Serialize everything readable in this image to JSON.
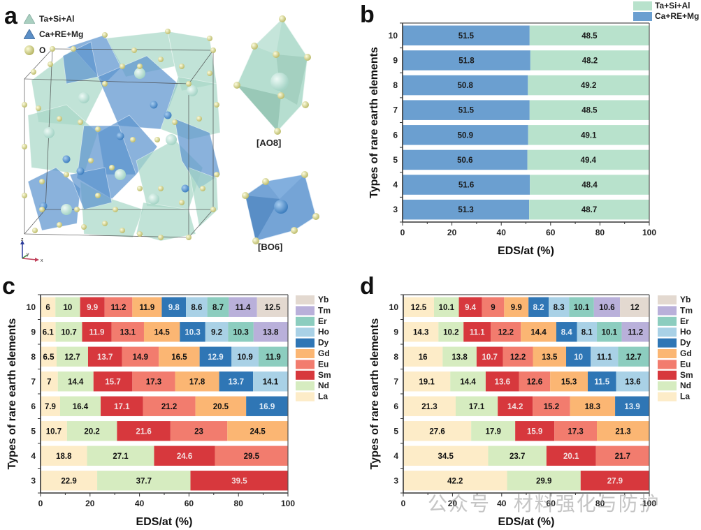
{
  "panels": {
    "a": {
      "letter": "a",
      "legend": [
        {
          "label": "Ta+Si+Al",
          "icon": "tetrahedron-icon",
          "color": "#a9cfc0"
        },
        {
          "label": "Ca+RE+Mg",
          "icon": "tetrahedron-icon",
          "color": "#5b8fc7"
        },
        {
          "label": "O",
          "icon": "sphere-icon",
          "color": "#e6e59a"
        }
      ],
      "structure_labels": {
        "ao8": "[AO8]",
        "bo6": "[BO6]"
      },
      "axes_labels": {
        "z": "z",
        "y": "y",
        "x": "x"
      }
    },
    "b": {
      "letter": "b"
    },
    "c": {
      "letter": "c"
    },
    "d": {
      "letter": "d"
    }
  },
  "watermark": "公众号 · 材料强化与防护",
  "chart_data": [
    {
      "id": "b",
      "type": "bar",
      "orientation": "horizontal-stacked",
      "title": "",
      "xlabel": "EDS/at (%)",
      "ylabel": "Types of rare earth elements",
      "xlim": [
        0,
        100
      ],
      "xticks": [
        "0",
        "20",
        "40",
        "60",
        "80",
        "100"
      ],
      "categories": [
        "10",
        "9",
        "8",
        "7",
        "6",
        "5",
        "4",
        "3"
      ],
      "legend_position": "top-right",
      "series": [
        {
          "name": "Ca+RE+Mg",
          "color": "#6b9fd0",
          "values": [
            51.5,
            51.8,
            50.8,
            51.5,
            50.9,
            50.6,
            51.6,
            51.3
          ]
        },
        {
          "name": "Ta+Si+Al",
          "color": "#b8e2cc",
          "values": [
            48.5,
            48.2,
            49.2,
            48.5,
            49.1,
            49.4,
            48.4,
            48.7
          ]
        }
      ],
      "legend": [
        {
          "name": "Ta+Si+Al",
          "color": "#b8e2cc"
        },
        {
          "name": "Ca+RE+Mg",
          "color": "#6b9fd0"
        }
      ]
    },
    {
      "id": "c",
      "type": "bar",
      "orientation": "horizontal-stacked",
      "title": "",
      "xlabel": "EDS/at (%)",
      "ylabel": "Types of rare earth elements",
      "xlim": [
        0,
        100
      ],
      "xticks": [
        "0",
        "20",
        "40",
        "60",
        "80",
        "100"
      ],
      "categories": [
        "10",
        "9",
        "8",
        "7",
        "6",
        "5",
        "4",
        "3"
      ],
      "legend_position": "right",
      "element_order": [
        "La",
        "Nd",
        "Sm",
        "Eu",
        "Gd",
        "Dy",
        "Ho",
        "Er",
        "Tm",
        "Yb"
      ],
      "rows": [
        {
          "category": "10",
          "values": [
            6.0,
            10.0,
            9.9,
            11.2,
            11.9,
            9.8,
            8.6,
            8.7,
            11.4,
            12.5
          ]
        },
        {
          "category": "9",
          "values": [
            6.1,
            10.7,
            11.9,
            13.1,
            14.5,
            10.3,
            9.2,
            10.3,
            13.8
          ]
        },
        {
          "category": "8",
          "values": [
            6.5,
            12.7,
            13.7,
            14.9,
            16.5,
            12.9,
            10.9,
            11.9
          ]
        },
        {
          "category": "7",
          "values": [
            7.0,
            14.4,
            15.7,
            17.3,
            17.8,
            13.7,
            14.1
          ]
        },
        {
          "category": "6",
          "values": [
            7.9,
            16.4,
            17.1,
            21.2,
            20.5,
            16.9
          ]
        },
        {
          "category": "5",
          "values": [
            10.7,
            20.2,
            21.6,
            23.0,
            24.5
          ]
        },
        {
          "category": "4",
          "values": [
            18.8,
            27.1,
            24.6,
            29.5
          ]
        },
        {
          "category": "3",
          "values": [
            22.9,
            37.7,
            39.5
          ]
        }
      ]
    },
    {
      "id": "d",
      "type": "bar",
      "orientation": "horizontal-stacked",
      "title": "",
      "xlabel": "EDS/at (%)",
      "ylabel": "Types of rare earth elements",
      "xlim": [
        0,
        100
      ],
      "xticks": [
        "0",
        "20",
        "40",
        "60",
        "80",
        "100"
      ],
      "categories": [
        "10",
        "9",
        "8",
        "7",
        "6",
        "5",
        "4",
        "3"
      ],
      "legend_position": "right",
      "element_order": [
        "La",
        "Nd",
        "Sm",
        "Eu",
        "Gd",
        "Dy",
        "Ho",
        "Er",
        "Tm",
        "Yb"
      ],
      "rows": [
        {
          "category": "10",
          "values": [
            12.5,
            10.1,
            9.4,
            9.0,
            9.9,
            8.2,
            8.3,
            10.1,
            10.6,
            12.0
          ]
        },
        {
          "category": "9",
          "values": [
            14.3,
            10.2,
            11.1,
            12.2,
            14.4,
            8.4,
            8.1,
            10.1,
            11.2
          ]
        },
        {
          "category": "8",
          "values": [
            16.0,
            13.8,
            10.7,
            12.2,
            13.5,
            10.0,
            11.1,
            12.7
          ]
        },
        {
          "category": "7",
          "values": [
            19.1,
            14.4,
            13.6,
            12.6,
            15.3,
            11.5,
            13.6
          ]
        },
        {
          "category": "6",
          "values": [
            21.3,
            17.1,
            14.2,
            15.2,
            18.3,
            13.9
          ]
        },
        {
          "category": "5",
          "values": [
            27.6,
            17.9,
            15.9,
            17.3,
            21.3
          ]
        },
        {
          "category": "4",
          "values": [
            34.5,
            23.7,
            20.1,
            21.7
          ]
        },
        {
          "category": "3",
          "values": [
            42.2,
            29.9,
            27.9
          ]
        }
      ]
    }
  ],
  "element_colors": {
    "La": {
      "fill": "#fdecc8",
      "text": "#111111"
    },
    "Nd": {
      "fill": "#d6ecc0",
      "text": "#111111"
    },
    "Sm": {
      "fill": "#d7383d",
      "text": "#f3e0e0"
    },
    "Eu": {
      "fill": "#f27c6e",
      "text": "#111111"
    },
    "Gd": {
      "fill": "#fbb673",
      "text": "#111111"
    },
    "Dy": {
      "fill": "#2f76b5",
      "text": "#e4eef8"
    },
    "Ho": {
      "fill": "#a9d1e6",
      "text": "#111111"
    },
    "Er": {
      "fill": "#8ccdbf",
      "text": "#111111"
    },
    "Tm": {
      "fill": "#b9b0da",
      "text": "#111111"
    },
    "Yb": {
      "fill": "#e3d9d0",
      "text": "#111111"
    }
  },
  "legend_order_cd": [
    "Yb",
    "Tm",
    "Er",
    "Ho",
    "Dy",
    "Gd",
    "Eu",
    "Sm",
    "Nd",
    "La"
  ]
}
